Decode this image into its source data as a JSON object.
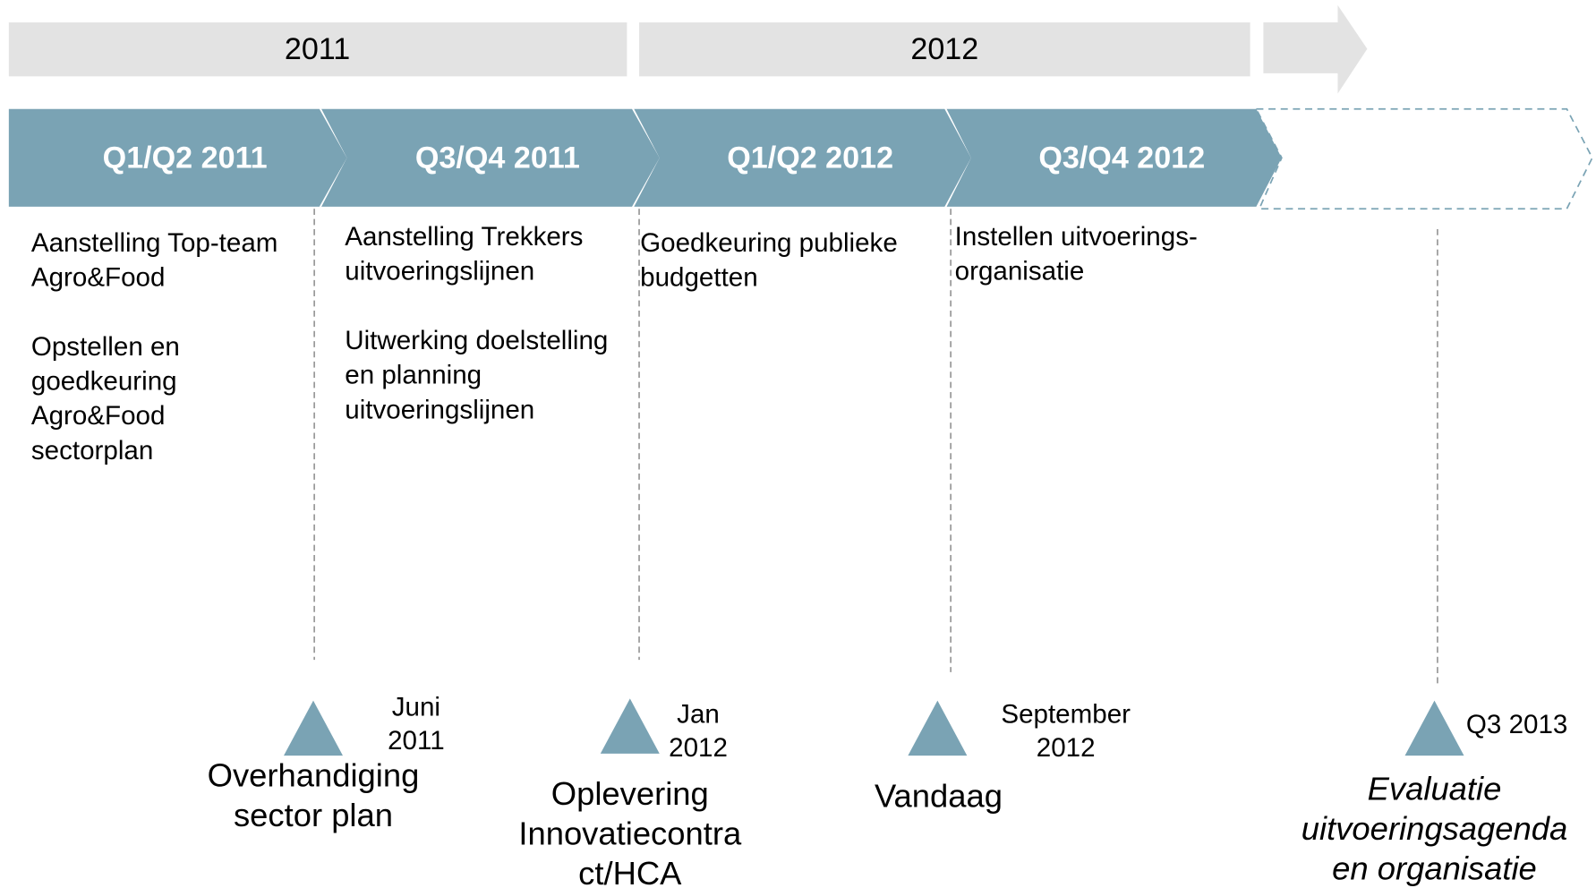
{
  "years": [
    "2011",
    "2012"
  ],
  "phases": [
    "Q1/Q2 2011",
    "Q3/Q4 2011",
    "Q1/Q2 2012",
    "Q3/Q4 2012"
  ],
  "descriptions": [
    [
      [
        "Aanstelling Top-team",
        "Agro&Food"
      ],
      [
        "Opstellen  en",
        "goedkeuring",
        "Agro&Food",
        "sectorplan"
      ]
    ],
    [
      [
        "Aanstelling Trekkers",
        "uitvoeringslijnen"
      ],
      [
        "Uitwerking doelstelling",
        "en planning",
        "uitvoeringslijnen"
      ]
    ],
    [
      [
        "Goedkeuring publieke",
        "budgetten"
      ]
    ],
    [
      [
        "Instellen uitvoerings-",
        "organisatie"
      ]
    ]
  ],
  "milestones": [
    {
      "date": [
        "Juni",
        "2011"
      ],
      "label": [
        "Overhandiging",
        "sector plan"
      ]
    },
    {
      "date": [
        "Jan",
        "2012"
      ],
      "label": [
        "Oplevering",
        "Innovatiecontra",
        "ct/HCA"
      ]
    },
    {
      "date": [
        "September",
        "2012"
      ],
      "label": [
        "Vandaag"
      ]
    },
    {
      "date": [
        "Q3 2013"
      ],
      "label": [
        "Evaluatie",
        "uitvoeringsagenda",
        "en organisatie"
      ]
    }
  ]
}
